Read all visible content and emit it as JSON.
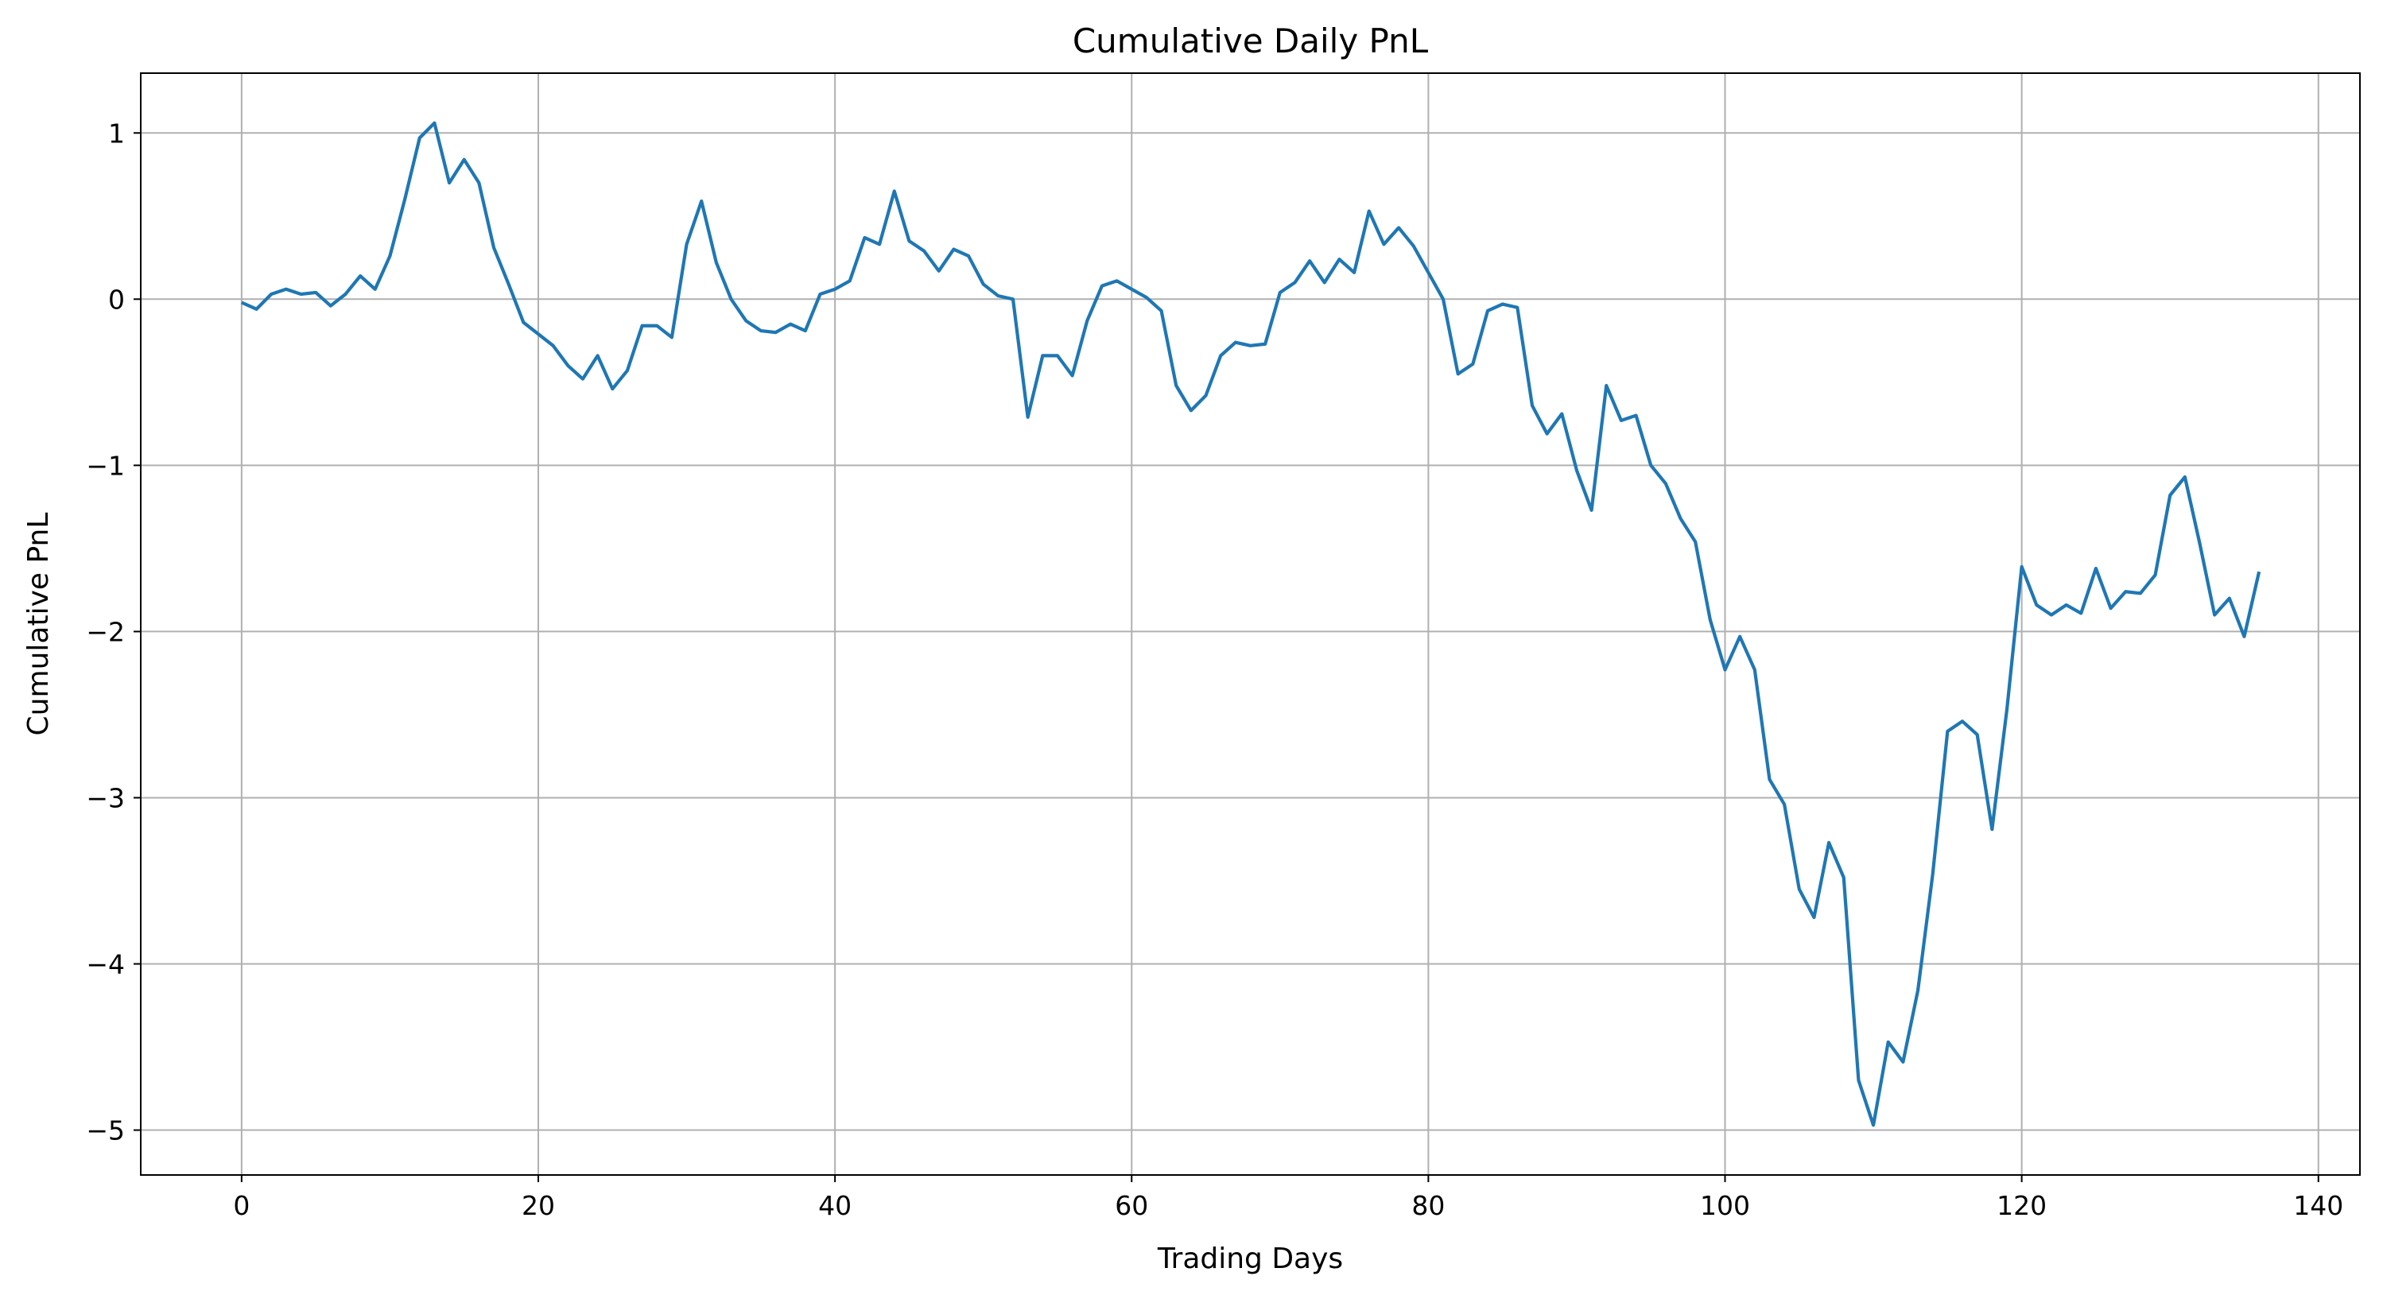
{
  "chart_data": {
    "type": "line",
    "title": "Cumulative Daily PnL",
    "xlabel": "Trading Days",
    "ylabel": "Cumulative PnL",
    "xlim": [
      -6.8,
      142.8
    ],
    "ylim": [
      -5.27,
      1.36
    ],
    "xticks": [
      0,
      20,
      40,
      60,
      80,
      100,
      120,
      140
    ],
    "yticks": [
      1,
      0,
      -1,
      -2,
      -3,
      -4,
      -5
    ],
    "xtick_labels": [
      "0",
      "20",
      "40",
      "60",
      "80",
      "100",
      "120",
      "140"
    ],
    "ytick_labels": [
      "1",
      "0",
      "−1",
      "−2",
      "−3",
      "−4",
      "−5"
    ],
    "grid": true,
    "line_color": "#1f77b4",
    "series": [
      {
        "values": [
          -0.02,
          -0.06,
          0.03,
          0.06,
          0.03,
          0.04,
          -0.04,
          0.03,
          0.14,
          0.06,
          0.26,
          0.6,
          0.97,
          1.06,
          0.7,
          0.84,
          0.7,
          0.31,
          0.09,
          -0.14,
          -0.21,
          -0.28,
          -0.4,
          -0.48,
          -0.34,
          -0.54,
          -0.43,
          -0.16,
          -0.16,
          -0.23,
          0.33,
          0.59,
          0.22,
          0.0,
          -0.13,
          -0.19,
          -0.2,
          -0.15,
          -0.19,
          0.03,
          0.06,
          0.11,
          0.37,
          0.33,
          0.65,
          0.35,
          0.29,
          0.17,
          0.3,
          0.26,
          0.09,
          0.02,
          0.0,
          -0.71,
          -0.34,
          -0.34,
          -0.46,
          -0.13,
          0.08,
          0.11,
          0.06,
          0.01,
          -0.07,
          -0.52,
          -0.67,
          -0.58,
          -0.34,
          -0.26,
          -0.28,
          -0.27,
          0.04,
          0.1,
          0.23,
          0.1,
          0.24,
          0.16,
          0.53,
          0.33,
          0.43,
          0.32,
          0.16,
          0.0,
          -0.45,
          -0.39,
          -0.07,
          -0.03,
          -0.05,
          -0.64,
          -0.81,
          -0.69,
          -1.03,
          -1.27,
          -0.52,
          -0.73,
          -0.7,
          -1.0,
          -1.11,
          -1.32,
          -1.46,
          -1.93,
          -2.23,
          -2.03,
          -2.23,
          -2.89,
          -3.04,
          -3.55,
          -3.72,
          -3.27,
          -3.48,
          -4.7,
          -4.97,
          -4.47,
          -4.59,
          -4.16,
          -3.46,
          -2.6,
          -2.54,
          -2.62,
          -3.19,
          -2.47,
          -1.61,
          -1.84,
          -1.9,
          -1.84,
          -1.89,
          -1.62,
          -1.86,
          -1.76,
          -1.77,
          -1.66,
          -1.18,
          -1.07,
          -1.47,
          -1.9,
          -1.8,
          -2.03,
          -1.64
        ]
      }
    ]
  }
}
